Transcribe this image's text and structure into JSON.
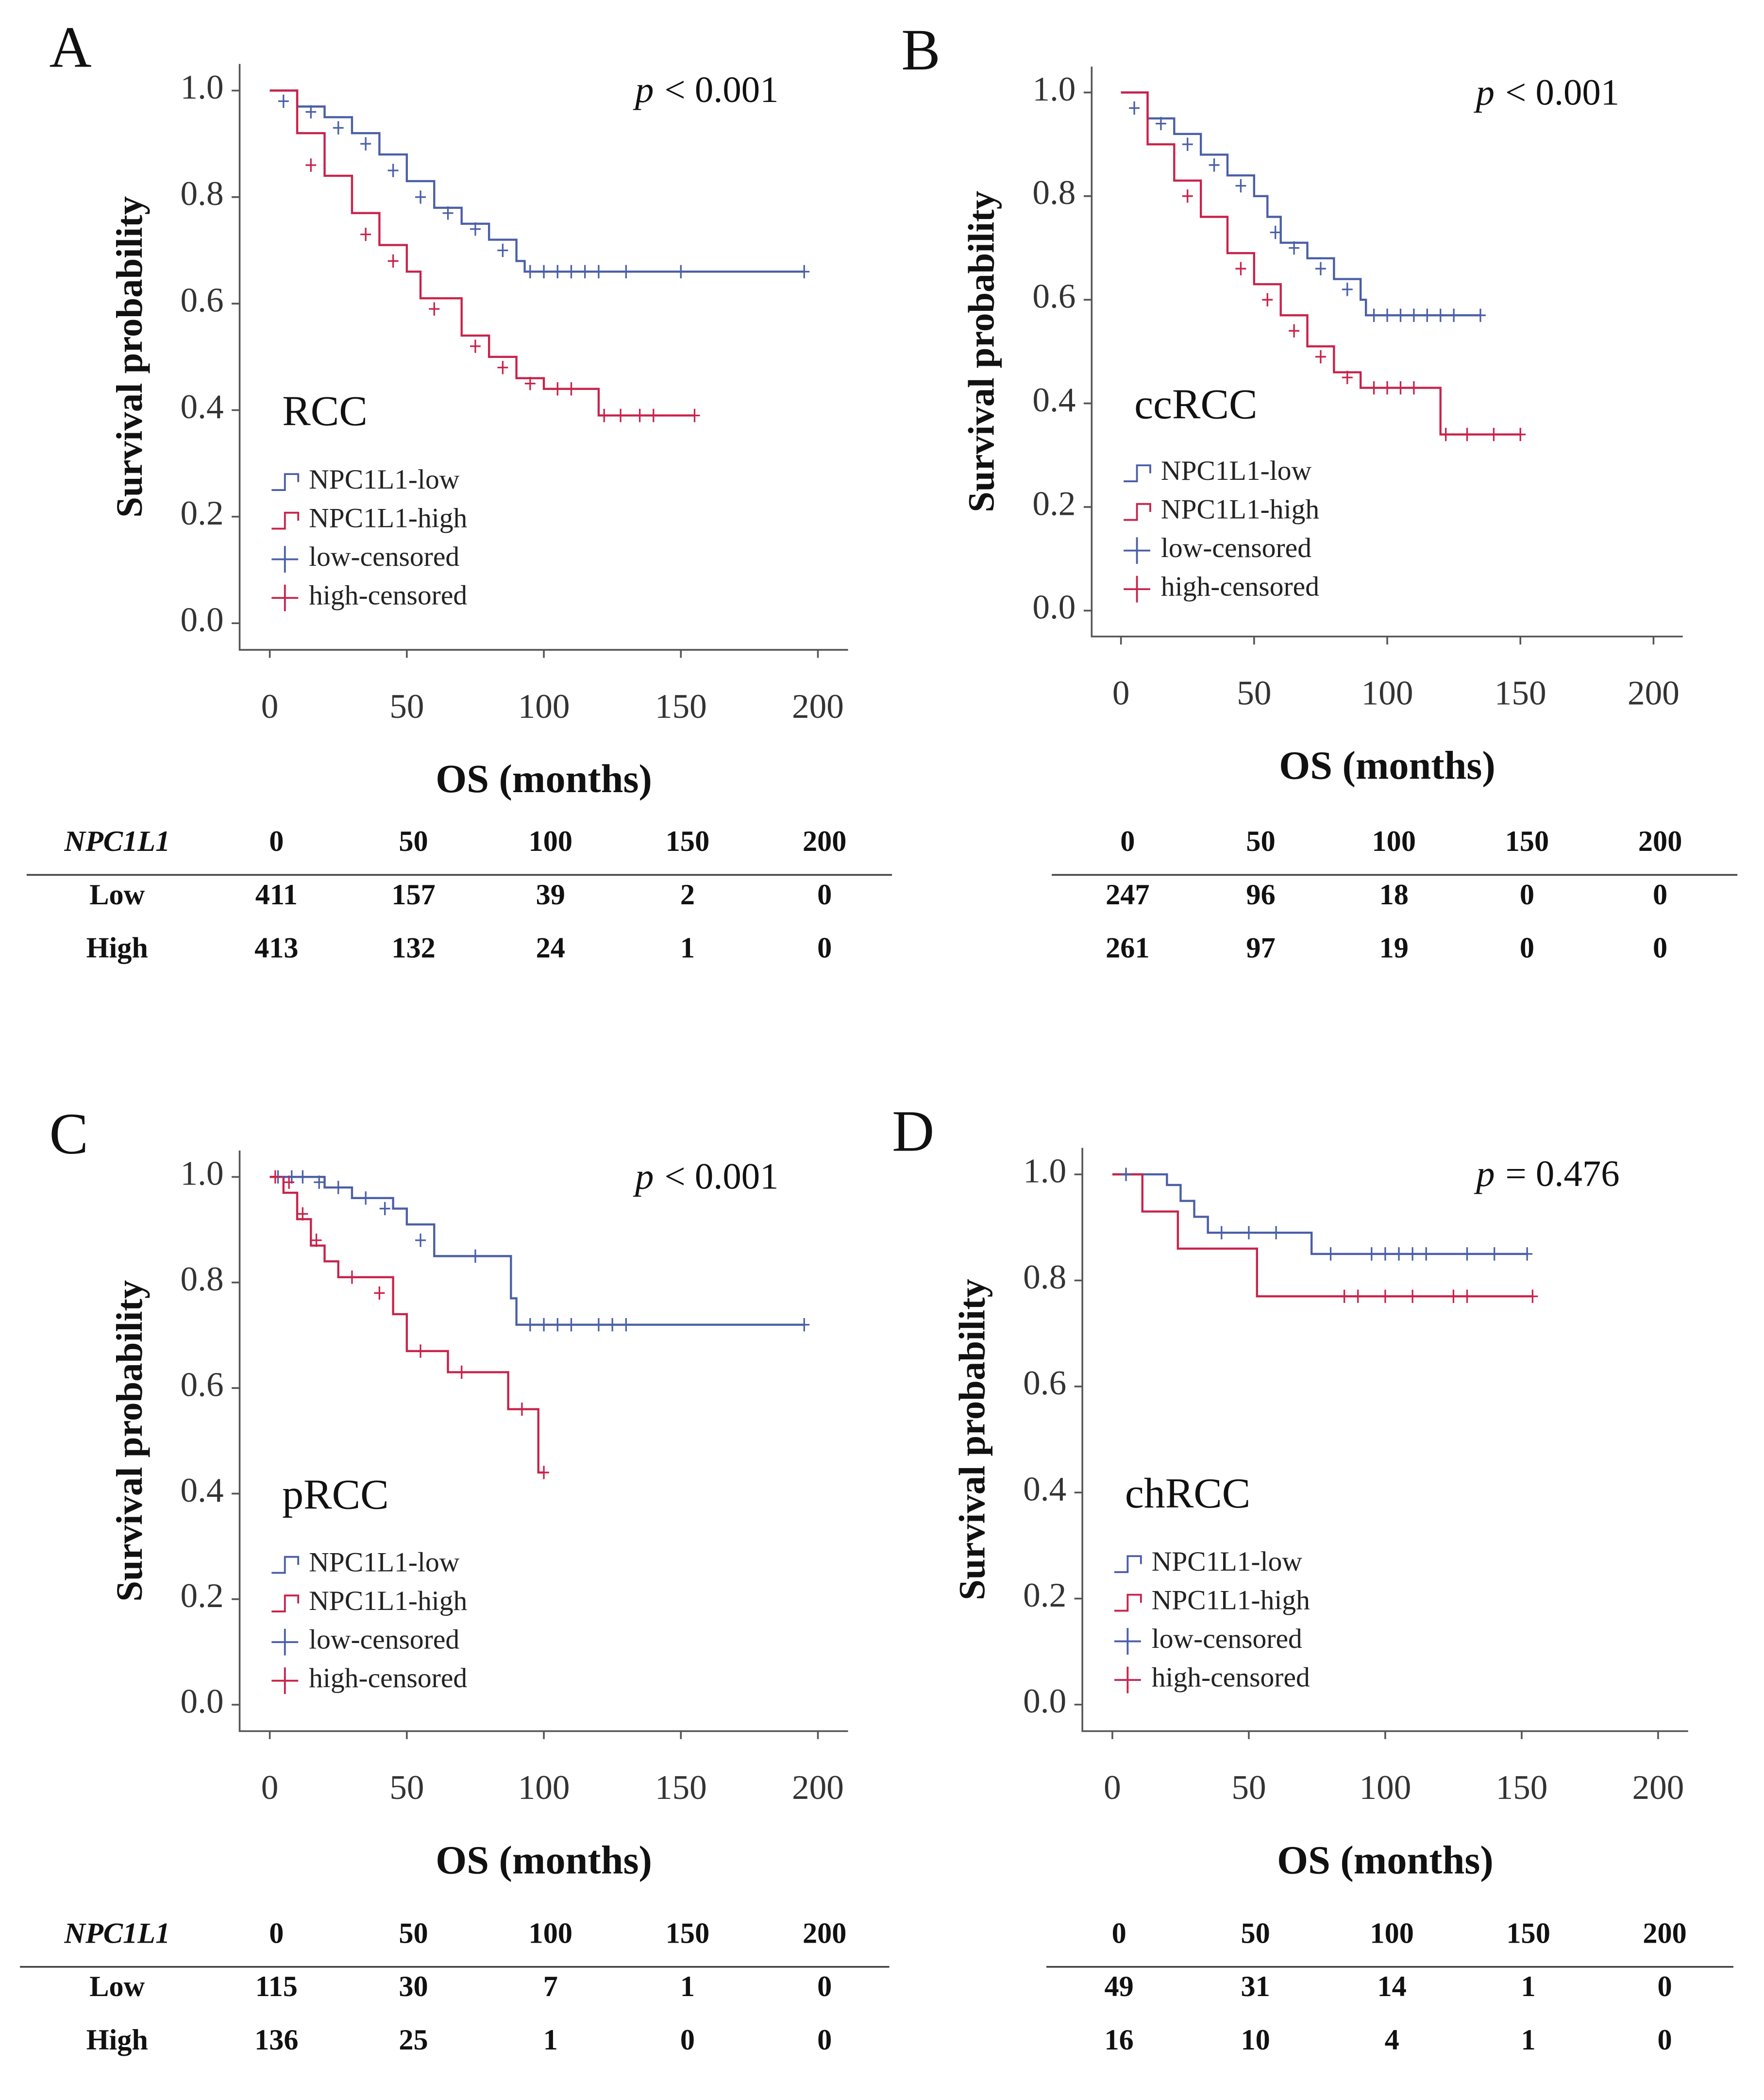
{
  "chart_data": [
    {
      "type": "km",
      "panel": "A",
      "subtitle": "RCC",
      "annotation": {
        "italic": "p",
        "text": "< 0.001"
      },
      "xlabel": "OS (months)",
      "ylabel": "Survival probability",
      "xlim": [
        -11,
        211
      ],
      "ylim": [
        -0.05,
        1.05
      ],
      "xticks": [
        0,
        50,
        100,
        150,
        200
      ],
      "yticks": [
        {
          "value": 0,
          "label": "0.0"
        },
        0.2,
        0.4,
        0.6,
        0.8,
        {
          "value": 1,
          "label": "1.0"
        }
      ],
      "series": [
        {
          "name": "NPC1L1-low",
          "color": "#4a5fa8",
          "style": "step",
          "x": [
            0,
            10,
            20,
            30,
            40,
            50,
            60,
            70,
            80,
            90,
            93,
            195
          ],
          "values": [
            1,
            0.97,
            0.95,
            0.92,
            0.88,
            0.83,
            0.78,
            0.75,
            0.72,
            0.68,
            0.66,
            0.66
          ]
        },
        {
          "name": "NPC1L1-high",
          "color": "#c8234a",
          "style": "step",
          "x": [
            0,
            10,
            20,
            30,
            40,
            50,
            55,
            70,
            80,
            90,
            100,
            117,
            120,
            155
          ],
          "values": [
            1,
            0.92,
            0.84,
            0.77,
            0.71,
            0.66,
            0.61,
            0.54,
            0.5,
            0.46,
            0.44,
            0.44,
            0.39,
            0.39
          ]
        },
        {
          "name": "low-censored",
          "color": "#4a5fa8",
          "style": "censor",
          "x": [
            5,
            15,
            25,
            35,
            45,
            55,
            65,
            75,
            85,
            95,
            100,
            105,
            110,
            115,
            120,
            130,
            150,
            195
          ],
          "values": [
            0.98,
            0.96,
            0.93,
            0.9,
            0.85,
            0.8,
            0.77,
            0.74,
            0.7,
            0.66,
            0.66,
            0.66,
            0.66,
            0.66,
            0.66,
            0.66,
            0.66,
            0.66
          ]
        },
        {
          "name": "high-censored",
          "color": "#c8234a",
          "style": "censor",
          "x": [
            15,
            35,
            45,
            60,
            75,
            85,
            95,
            105,
            110,
            122,
            128,
            135,
            140,
            155
          ],
          "values": [
            0.86,
            0.73,
            0.68,
            0.59,
            0.52,
            0.48,
            0.45,
            0.44,
            0.44,
            0.39,
            0.39,
            0.39,
            0.39,
            0.39
          ]
        }
      ],
      "risk_table": {
        "header": "NPC1L1",
        "columns": [
          0,
          50,
          100,
          150,
          200
        ],
        "rows": [
          {
            "label": "Low",
            "values": [
              411,
              157,
              39,
              2,
              0
            ]
          },
          {
            "label": "High",
            "values": [
              413,
              132,
              24,
              1,
              0
            ]
          }
        ]
      }
    },
    {
      "type": "km",
      "panel": "B",
      "subtitle": "ccRCC",
      "annotation": {
        "italic": "p",
        "text": "< 0.001"
      },
      "xlabel": "OS (months)",
      "ylabel": "Survival probability",
      "xlim": [
        -11,
        211
      ],
      "ylim": [
        -0.05,
        1.05
      ],
      "xticks": [
        0,
        50,
        100,
        150,
        200
      ],
      "yticks": [
        {
          "value": 0,
          "label": "0.0"
        },
        0.2,
        0.4,
        0.6,
        0.8,
        {
          "value": 1,
          "label": "1.0"
        }
      ],
      "series": [
        {
          "name": "NPC1L1-low",
          "color": "#4a5fa8",
          "style": "step",
          "x": [
            0,
            10,
            20,
            30,
            40,
            50,
            55,
            60,
            70,
            80,
            90,
            92,
            135
          ],
          "values": [
            1,
            0.95,
            0.92,
            0.88,
            0.84,
            0.8,
            0.76,
            0.71,
            0.68,
            0.64,
            0.6,
            0.57,
            0.57
          ]
        },
        {
          "name": "NPC1L1-high",
          "color": "#c8234a",
          "style": "step",
          "x": [
            0,
            10,
            20,
            30,
            40,
            50,
            60,
            70,
            80,
            90,
            117,
            120,
            150
          ],
          "values": [
            1,
            0.9,
            0.83,
            0.76,
            0.69,
            0.63,
            0.57,
            0.51,
            0.46,
            0.43,
            0.43,
            0.34,
            0.34
          ]
        },
        {
          "name": "low-censored",
          "color": "#4a5fa8",
          "style": "censor",
          "x": [
            5,
            15,
            25,
            35,
            45,
            58,
            65,
            75,
            85,
            95,
            100,
            105,
            110,
            115,
            120,
            125,
            135
          ],
          "values": [
            0.97,
            0.94,
            0.9,
            0.86,
            0.82,
            0.73,
            0.7,
            0.66,
            0.62,
            0.57,
            0.57,
            0.57,
            0.57,
            0.57,
            0.57,
            0.57,
            0.57
          ]
        },
        {
          "name": "high-censored",
          "color": "#c8234a",
          "style": "censor",
          "x": [
            25,
            45,
            55,
            65,
            75,
            85,
            95,
            100,
            105,
            110,
            122,
            130,
            140,
            150
          ],
          "values": [
            0.8,
            0.66,
            0.6,
            0.54,
            0.49,
            0.45,
            0.43,
            0.43,
            0.43,
            0.43,
            0.34,
            0.34,
            0.34,
            0.34
          ]
        }
      ],
      "risk_table": {
        "columns": [
          0,
          50,
          100,
          150,
          200
        ],
        "rows": [
          {
            "values": [
              247,
              96,
              18,
              0,
              0
            ]
          },
          {
            "values": [
              261,
              97,
              19,
              0,
              0
            ]
          }
        ]
      }
    },
    {
      "type": "km",
      "panel": "C",
      "subtitle": "pRCC",
      "annotation": {
        "italic": "p",
        "text": "< 0.001"
      },
      "xlabel": "OS (months)",
      "ylabel": "Survival probability",
      "xlim": [
        -11,
        211
      ],
      "ylim": [
        -0.05,
        1.05
      ],
      "xticks": [
        0,
        50,
        100,
        150,
        200
      ],
      "yticks": [
        {
          "value": 0,
          "label": "0.0"
        },
        0.2,
        0.4,
        0.6,
        0.8,
        {
          "value": 1,
          "label": "1.0"
        }
      ],
      "series": [
        {
          "name": "NPC1L1-low",
          "color": "#4a5fa8",
          "style": "step",
          "x": [
            0,
            20,
            30,
            45,
            50,
            60,
            85,
            88,
            90,
            195
          ],
          "values": [
            1,
            0.98,
            0.96,
            0.94,
            0.91,
            0.85,
            0.85,
            0.77,
            0.72,
            0.72
          ]
        },
        {
          "name": "NPC1L1-high",
          "color": "#c8234a",
          "style": "step",
          "x": [
            0,
            5,
            10,
            15,
            20,
            25,
            35,
            45,
            50,
            65,
            85,
            87,
            97,
            98,
            100
          ],
          "values": [
            1,
            0.97,
            0.92,
            0.87,
            0.84,
            0.81,
            0.81,
            0.74,
            0.67,
            0.63,
            0.63,
            0.56,
            0.56,
            0.44,
            0.44
          ]
        },
        {
          "name": "low-censored",
          "color": "#4a5fa8",
          "style": "censor",
          "x": [
            3,
            8,
            12,
            18,
            25,
            35,
            42,
            55,
            75,
            95,
            100,
            105,
            110,
            120,
            125,
            130,
            195
          ],
          "values": [
            1,
            1,
            1,
            0.99,
            0.98,
            0.96,
            0.94,
            0.88,
            0.85,
            0.72,
            0.72,
            0.72,
            0.72,
            0.72,
            0.72,
            0.72,
            0.72
          ]
        },
        {
          "name": "high-censored",
          "color": "#c8234a",
          "style": "censor",
          "x": [
            2,
            7,
            12,
            17,
            30,
            40,
            55,
            70,
            92,
            100
          ],
          "values": [
            1,
            0.99,
            0.93,
            0.88,
            0.81,
            0.78,
            0.67,
            0.63,
            0.56,
            0.44
          ]
        }
      ],
      "risk_table": {
        "header": "NPC1L1",
        "columns": [
          0,
          50,
          100,
          150,
          200
        ],
        "rows": [
          {
            "label": "Low",
            "values": [
              115,
              30,
              7,
              1,
              0
            ]
          },
          {
            "label": "High",
            "values": [
              136,
              25,
              1,
              0,
              0
            ]
          }
        ]
      }
    },
    {
      "type": "km",
      "panel": "D",
      "subtitle": "chRCC",
      "annotation": {
        "italic": "p",
        "text": "= 0.476"
      },
      "xlabel": "OS (months)",
      "ylabel": "Survival probability",
      "xlim": [
        -11,
        211
      ],
      "ylim": [
        -0.05,
        1.05
      ],
      "xticks": [
        0,
        50,
        100,
        150,
        200
      ],
      "yticks": [
        {
          "value": 0,
          "label": "0.0"
        },
        0.2,
        0.4,
        0.6,
        0.8,
        {
          "value": 1,
          "label": "1.0"
        }
      ],
      "series": [
        {
          "name": "NPC1L1-low",
          "color": "#4a5fa8",
          "style": "step",
          "x": [
            0,
            15,
            20,
            25,
            30,
            35,
            70,
            73,
            152
          ],
          "values": [
            1,
            1,
            0.98,
            0.95,
            0.92,
            0.89,
            0.89,
            0.85,
            0.85
          ]
        },
        {
          "name": "NPC1L1-high",
          "color": "#c8234a",
          "style": "step",
          "x": [
            0,
            10,
            11,
            23,
            24,
            52,
            53,
            154
          ],
          "values": [
            1,
            1,
            0.93,
            0.93,
            0.86,
            0.86,
            0.77,
            0.77
          ]
        },
        {
          "name": "low-censored",
          "color": "#4a5fa8",
          "style": "censor",
          "x": [
            5,
            40,
            50,
            60,
            80,
            95,
            100,
            105,
            110,
            115,
            130,
            140,
            152
          ],
          "values": [
            1,
            0.89,
            0.89,
            0.89,
            0.85,
            0.85,
            0.85,
            0.85,
            0.85,
            0.85,
            0.85,
            0.85,
            0.85
          ]
        },
        {
          "name": "high-censored",
          "color": "#c8234a",
          "style": "censor",
          "x": [
            85,
            90,
            100,
            110,
            125,
            130,
            154
          ],
          "values": [
            0.77,
            0.77,
            0.77,
            0.77,
            0.77,
            0.77,
            0.77
          ]
        }
      ],
      "risk_table": {
        "columns": [
          0,
          50,
          100,
          150,
          200
        ],
        "rows": [
          {
            "values": [
              49,
              31,
              14,
              1,
              0
            ]
          },
          {
            "values": [
              16,
              10,
              4,
              1,
              0
            ]
          }
        ]
      }
    }
  ]
}
